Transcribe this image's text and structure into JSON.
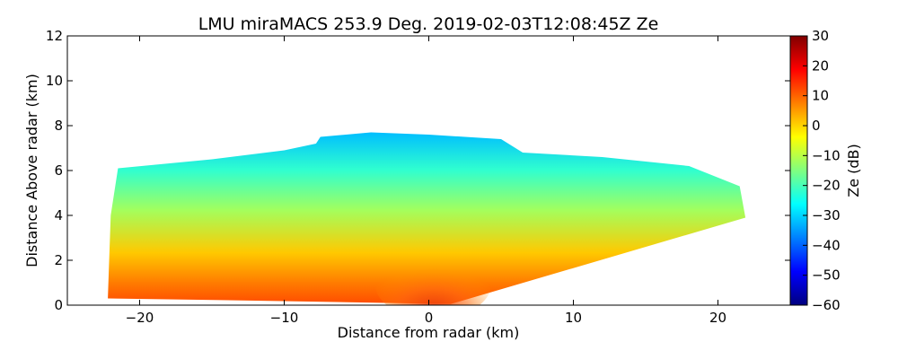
{
  "chart_data": {
    "type": "heatmap",
    "title": "LMU miraMACS 253.9 Deg. 2019-02-03T12:08:45Z  Ze",
    "xlabel": "Distance from radar (km)",
    "ylabel": "Distance Above radar  (km)",
    "xlim": [
      -25,
      25
    ],
    "ylim": [
      0,
      12
    ],
    "x_ticks": [
      -20,
      -10,
      0,
      10,
      20
    ],
    "x_tick_labels": [
      "−20",
      "−10",
      "0",
      "10",
      "20"
    ],
    "y_ticks": [
      0,
      2,
      4,
      6,
      8,
      10,
      12
    ],
    "y_tick_labels": [
      "0",
      "2",
      "4",
      "6",
      "8",
      "10",
      "12"
    ],
    "colorbar": {
      "label": "Ze (dB)",
      "colormap": "jet",
      "range": [
        -60,
        30
      ],
      "ticks": [
        30,
        20,
        10,
        0,
        -10,
        -20,
        -30,
        -40,
        -50,
        -60
      ],
      "tick_labels": [
        "30",
        "20",
        "10",
        "0",
        "−10",
        "−20",
        "−30",
        "−40",
        "−50",
        "−60"
      ]
    },
    "echo_region": {
      "description_values_ze_db": {
        "near_surface_center": 18,
        "lower_layer": 5,
        "mid_layer": -12,
        "upper_layer": -22,
        "cloud_top": -32
      },
      "outline_km": [
        [
          -22.2,
          0.3
        ],
        [
          -22.0,
          4.0
        ],
        [
          -21.5,
          6.1
        ],
        [
          -15,
          6.5
        ],
        [
          -10,
          6.9
        ],
        [
          -7.8,
          7.2
        ],
        [
          -7.5,
          7.5
        ],
        [
          -4,
          7.7
        ],
        [
          0,
          7.6
        ],
        [
          5,
          7.4
        ],
        [
          6.5,
          6.8
        ],
        [
          12,
          6.6
        ],
        [
          18,
          6.2
        ],
        [
          21.5,
          5.3
        ],
        [
          21.9,
          3.9
        ],
        [
          1.5,
          0.05
        ],
        [
          -3,
          0.1
        ],
        [
          -12,
          0.2
        ],
        [
          -22.2,
          0.3
        ]
      ]
    }
  }
}
